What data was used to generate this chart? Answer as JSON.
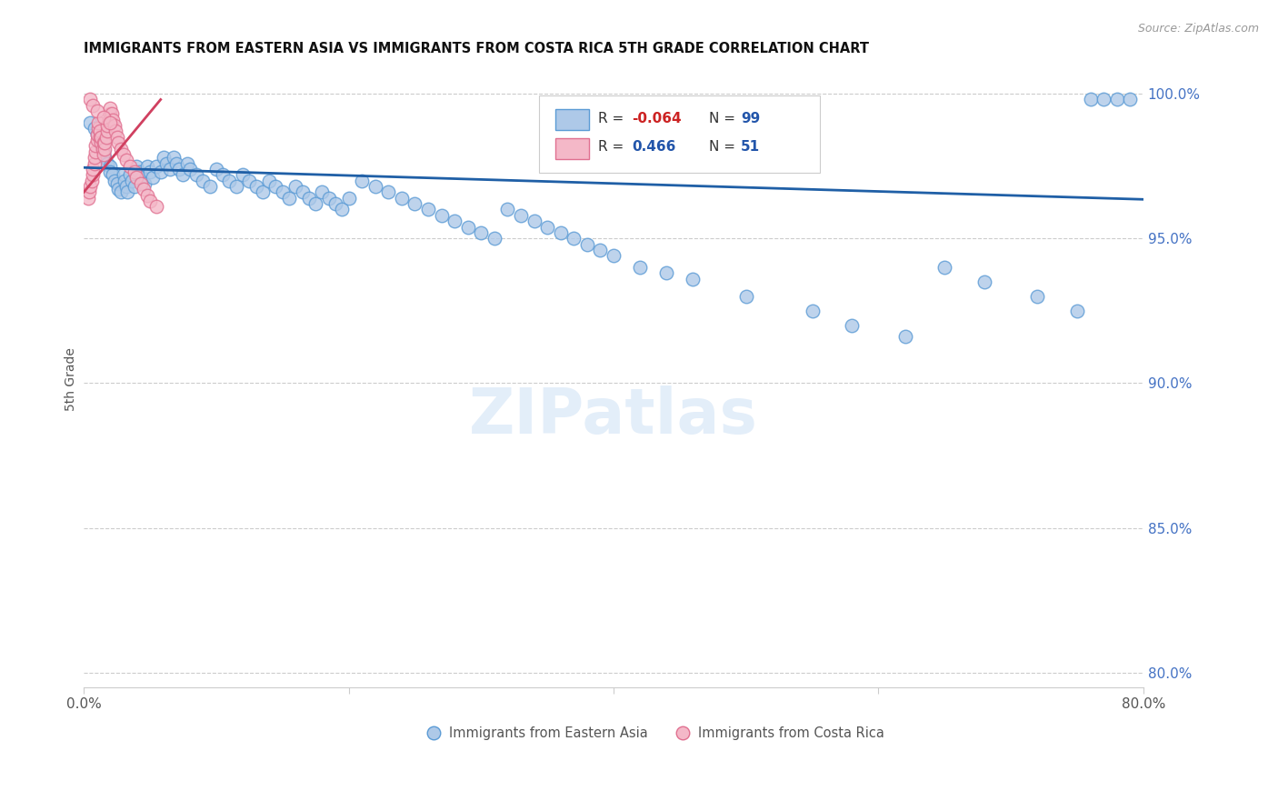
{
  "title": "IMMIGRANTS FROM EASTERN ASIA VS IMMIGRANTS FROM COSTA RICA 5TH GRADE CORRELATION CHART",
  "source": "Source: ZipAtlas.com",
  "ylabel": "5th Grade",
  "xmin": 0.0,
  "xmax": 0.8,
  "ymin": 0.795,
  "ymax": 1.008,
  "blue_color": "#aec9e8",
  "blue_edge": "#5b9bd5",
  "pink_color": "#f4b8c8",
  "pink_edge": "#e07090",
  "trend_blue": "#1f5fa6",
  "trend_pink": "#d04060",
  "legend_R_blue": "-0.064",
  "legend_N_blue": "99",
  "legend_R_pink": "0.466",
  "legend_N_pink": "51",
  "watermark": "ZIPatlas",
  "blue_x": [
    0.005,
    0.008,
    0.01,
    0.012,
    0.013,
    0.015,
    0.016,
    0.018,
    0.02,
    0.02,
    0.022,
    0.023,
    0.025,
    0.026,
    0.028,
    0.03,
    0.031,
    0.032,
    0.033,
    0.035,
    0.036,
    0.038,
    0.04,
    0.042,
    0.044,
    0.046,
    0.048,
    0.05,
    0.052,
    0.055,
    0.058,
    0.06,
    0.062,
    0.065,
    0.068,
    0.07,
    0.072,
    0.075,
    0.078,
    0.08,
    0.085,
    0.09,
    0.095,
    0.1,
    0.105,
    0.11,
    0.115,
    0.12,
    0.125,
    0.13,
    0.135,
    0.14,
    0.145,
    0.15,
    0.155,
    0.16,
    0.165,
    0.17,
    0.175,
    0.18,
    0.185,
    0.19,
    0.195,
    0.2,
    0.21,
    0.22,
    0.23,
    0.24,
    0.25,
    0.26,
    0.27,
    0.28,
    0.29,
    0.3,
    0.31,
    0.32,
    0.33,
    0.34,
    0.35,
    0.36,
    0.37,
    0.38,
    0.39,
    0.4,
    0.42,
    0.44,
    0.46,
    0.5,
    0.55,
    0.58,
    0.62,
    0.65,
    0.68,
    0.72,
    0.75,
    0.76,
    0.77,
    0.78,
    0.79
  ],
  "blue_y": [
    0.99,
    0.988,
    0.986,
    0.984,
    0.982,
    0.98,
    0.978,
    0.976,
    0.975,
    0.973,
    0.972,
    0.97,
    0.969,
    0.967,
    0.966,
    0.972,
    0.97,
    0.968,
    0.966,
    0.972,
    0.97,
    0.968,
    0.975,
    0.973,
    0.971,
    0.969,
    0.975,
    0.973,
    0.971,
    0.975,
    0.973,
    0.978,
    0.976,
    0.974,
    0.978,
    0.976,
    0.974,
    0.972,
    0.976,
    0.974,
    0.972,
    0.97,
    0.968,
    0.974,
    0.972,
    0.97,
    0.968,
    0.972,
    0.97,
    0.968,
    0.966,
    0.97,
    0.968,
    0.966,
    0.964,
    0.968,
    0.966,
    0.964,
    0.962,
    0.966,
    0.964,
    0.962,
    0.96,
    0.964,
    0.97,
    0.968,
    0.966,
    0.964,
    0.962,
    0.96,
    0.958,
    0.956,
    0.954,
    0.952,
    0.95,
    0.96,
    0.958,
    0.956,
    0.954,
    0.952,
    0.95,
    0.948,
    0.946,
    0.944,
    0.94,
    0.938,
    0.936,
    0.93,
    0.925,
    0.92,
    0.916,
    0.94,
    0.935,
    0.93,
    0.925,
    0.998,
    0.998,
    0.998,
    0.998
  ],
  "pink_x": [
    0.003,
    0.004,
    0.005,
    0.006,
    0.007,
    0.007,
    0.008,
    0.008,
    0.009,
    0.009,
    0.01,
    0.01,
    0.011,
    0.011,
    0.012,
    0.012,
    0.013,
    0.013,
    0.014,
    0.015,
    0.015,
    0.016,
    0.016,
    0.017,
    0.018,
    0.018,
    0.019,
    0.02,
    0.02,
    0.021,
    0.022,
    0.023,
    0.024,
    0.025,
    0.026,
    0.028,
    0.03,
    0.032,
    0.035,
    0.038,
    0.04,
    0.043,
    0.045,
    0.048,
    0.05,
    0.055,
    0.005,
    0.007,
    0.01,
    0.015,
    0.02
  ],
  "pink_y": [
    0.964,
    0.966,
    0.968,
    0.97,
    0.972,
    0.974,
    0.976,
    0.978,
    0.98,
    0.982,
    0.984,
    0.986,
    0.988,
    0.99,
    0.985,
    0.987,
    0.983,
    0.985,
    0.981,
    0.979,
    0.983,
    0.981,
    0.983,
    0.985,
    0.987,
    0.989,
    0.991,
    0.993,
    0.995,
    0.993,
    0.991,
    0.989,
    0.987,
    0.985,
    0.983,
    0.981,
    0.979,
    0.977,
    0.975,
    0.973,
    0.971,
    0.969,
    0.967,
    0.965,
    0.963,
    0.961,
    0.998,
    0.996,
    0.994,
    0.992,
    0.99
  ],
  "blue_trend_x0": 0.0,
  "blue_trend_x1": 0.8,
  "blue_trend_y0": 0.9745,
  "blue_trend_y1": 0.9635,
  "pink_trend_x0": 0.0,
  "pink_trend_x1": 0.058,
  "pink_trend_y0": 0.966,
  "pink_trend_y1": 0.998
}
